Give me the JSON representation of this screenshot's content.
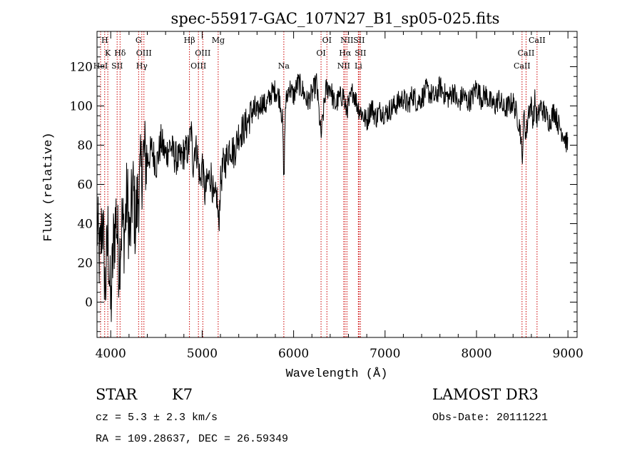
{
  "chart_data": {
    "type": "line",
    "title": "spec-55917-GAC_107N27_B1_sp05-025.fits",
    "xlabel": "Wavelength (Å)",
    "ylabel": "Flux (relative)",
    "xlim": [
      3850,
      9100
    ],
    "ylim": [
      -18,
      138
    ],
    "xticks": [
      4000,
      5000,
      6000,
      7000,
      8000,
      9000
    ],
    "yticks": [
      0,
      20,
      40,
      60,
      80,
      100,
      120
    ],
    "line_color": "#000000",
    "marker_color": "#cc0000",
    "series": [
      {
        "name": "flux",
        "x": [
          3850,
          3880,
          3910,
          3940,
          3970,
          4000,
          4030,
          4060,
          4090,
          4120,
          4150,
          4180,
          4210,
          4240,
          4270,
          4300,
          4330,
          4360,
          4400,
          4450,
          4500,
          4550,
          4600,
          4650,
          4700,
          4750,
          4800,
          4850,
          4880,
          4900,
          4920,
          4950,
          4980,
          5000,
          5030,
          5060,
          5100,
          5130,
          5160,
          5180,
          5200,
          5230,
          5260,
          5300,
          5350,
          5400,
          5450,
          5500,
          5550,
          5600,
          5650,
          5700,
          5750,
          5800,
          5850,
          5880,
          5893,
          5910,
          5950,
          6000,
          6050,
          6100,
          6150,
          6200,
          6250,
          6300,
          6350,
          6400,
          6450,
          6500,
          6550,
          6563,
          6600,
          6650,
          6700,
          6750,
          6800,
          6850,
          6900,
          6950,
          7000,
          7050,
          7100,
          7150,
          7200,
          7250,
          7300,
          7350,
          7400,
          7450,
          7500,
          7550,
          7600,
          7650,
          7700,
          7750,
          7800,
          7850,
          7900,
          7950,
          8000,
          8050,
          8100,
          8150,
          8200,
          8250,
          8300,
          8350,
          8400,
          8450,
          8480,
          8498,
          8520,
          8542,
          8570,
          8600,
          8620,
          8640,
          8662,
          8700,
          8750,
          8800,
          8850,
          8900,
          8950,
          8980,
          9000
        ],
        "y": [
          40,
          20,
          45,
          5,
          35,
          -5,
          30,
          45,
          20,
          40,
          35,
          55,
          30,
          60,
          40,
          55,
          65,
          75,
          72,
          78,
          70,
          82,
          75,
          80,
          74,
          72,
          76,
          78,
          88,
          70,
          80,
          75,
          60,
          72,
          55,
          62,
          65,
          50,
          55,
          38,
          60,
          70,
          72,
          80,
          76,
          86,
          88,
          92,
          98,
          96,
          102,
          100,
          106,
          108,
          104,
          92,
          58,
          100,
          110,
          105,
          112,
          108,
          102,
          106,
          112,
          84,
          108,
          110,
          100,
          104,
          106,
          98,
          100,
          108,
          100,
          96,
          92,
          100,
          94,
          98,
          96,
          98,
          100,
          102,
          104,
          100,
          106,
          102,
          104,
          108,
          106,
          104,
          110,
          106,
          104,
          108,
          100,
          106,
          102,
          104,
          110,
          104,
          106,
          102,
          100,
          104,
          98,
          100,
          102,
          94,
          88,
          72,
          96,
          84,
          98,
          100,
          92,
          104,
          92,
          100,
          96,
          92,
          98,
          90,
          86,
          82,
          80
        ]
      }
    ],
    "line_markers": [
      {
        "label": "H",
        "x": 3934,
        "row": 0
      },
      {
        "label": "K",
        "x": 3968,
        "row": 1
      },
      {
        "label": "HeI",
        "x": 3889,
        "row": 2
      },
      {
        "label": "Hδ",
        "x": 4102,
        "row": 1
      },
      {
        "label": "SII",
        "x": 4070,
        "row": 2
      },
      {
        "label": "G",
        "x": 4305,
        "row": 0
      },
      {
        "label": "OIII",
        "x": 4363,
        "row": 1
      },
      {
        "label": "Hγ",
        "x": 4340,
        "row": 2
      },
      {
        "label": "Hβ",
        "x": 4861,
        "row": 0
      },
      {
        "label": "OIII",
        "x": 5007,
        "row": 1
      },
      {
        "label": "OIII",
        "x": 4959,
        "row": 2
      },
      {
        "label": "Mg",
        "x": 5175,
        "row": 0
      },
      {
        "label": "Na",
        "x": 5893,
        "row": 2
      },
      {
        "label": "OI",
        "x": 6364,
        "row": 0
      },
      {
        "label": "OI",
        "x": 6300,
        "row": 1
      },
      {
        "label": "NII",
        "x": 6583,
        "row": 0
      },
      {
        "label": "SII",
        "x": 6716,
        "row": 0
      },
      {
        "label": "Hα",
        "x": 6563,
        "row": 1
      },
      {
        "label": "SII",
        "x": 6731,
        "row": 1
      },
      {
        "label": "NII",
        "x": 6548,
        "row": 2
      },
      {
        "label": "Li",
        "x": 6708,
        "row": 2
      },
      {
        "label": "CaII",
        "x": 8662,
        "row": 0
      },
      {
        "label": "CaII",
        "x": 8542,
        "row": 1
      },
      {
        "label": "CaII",
        "x": 8498,
        "row": 2
      }
    ]
  },
  "info": {
    "class": "STAR",
    "subclass": "K7",
    "cz": "cz = 5.3 ± 2.3 km/s",
    "radec": "RA = 109.28637, DEC =  26.59349",
    "survey": "LAMOST DR3",
    "obsdate": "Obs-Date: 20111221"
  }
}
